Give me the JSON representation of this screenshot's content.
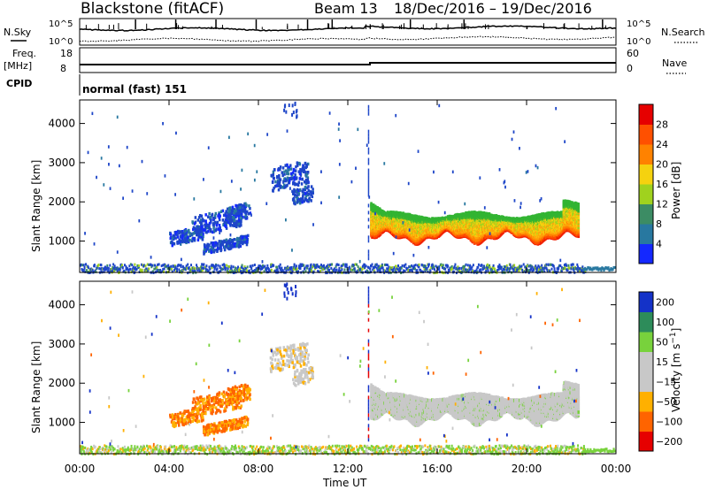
{
  "header": {
    "station": "Blackstone (fitACF)",
    "beam": "Beam 13",
    "date_range": "18/Dec/2016 – 19/Dec/2016"
  },
  "top_panels": {
    "nsky_label": "N.Sky",
    "nsearch_label": "N.Search",
    "noise_ticks": [
      "10^5",
      "10^0"
    ],
    "freq_label": "Freq.",
    "freq_unit": "[MHz]",
    "freq_ticks": [
      "18",
      "8"
    ],
    "nave_label": "Nave",
    "nave_ticks": [
      "60",
      "0"
    ],
    "cpid_label": "CPID",
    "cpid_value": "normal (fast) 151"
  },
  "colors": {
    "background_scatter": "#808080",
    "power_scale": [
      "#1428ff",
      "#1e46c8",
      "#2878a0",
      "#3c8c64",
      "#32b432",
      "#a0d21e",
      "#f5d20f",
      "#ffa50a",
      "#ff8200",
      "#ff5000",
      "#f01e00",
      "#e60000"
    ],
    "velocity_scale": [
      "#e60000",
      "#ff3200",
      "#ff6e00",
      "#ffaa00",
      "#ffd200",
      "#c8c8c8",
      "#c8c8c8",
      "#78d23c",
      "#3caa50",
      "#2d8c5a",
      "#1e5fa0",
      "#1432c8"
    ]
  },
  "chart_data": [
    {
      "type": "heatmap",
      "name": "Power",
      "ylabel": "Slant Range [km]",
      "ylim": [
        200,
        4600
      ],
      "yticks": [
        1000,
        2000,
        3000,
        4000
      ],
      "xlim_hours": [
        0,
        24
      ],
      "colorbar": {
        "label": "Power [dB]",
        "range": [
          0,
          32
        ],
        "ticks": [
          4,
          8,
          12,
          16,
          20,
          24,
          28
        ]
      },
      "regions": [
        {
          "t_start": 13.0,
          "t_end": 22.3,
          "range_lower_km": 1150,
          "range_upper_km": 1800,
          "value_dB": "8-28"
        },
        {
          "t_start": 3.8,
          "t_end": 7.6,
          "range_lower_km": 700,
          "range_upper_km": 1700,
          "value_dB": "4-10"
        },
        {
          "t_start": 8.3,
          "t_end": 10.3,
          "range_lower_km": 2200,
          "range_upper_km": 2900,
          "value_dB": "4-8"
        },
        {
          "t_start": 0.0,
          "t_end": 22.5,
          "range_lower_km": 200,
          "range_upper_km": 400,
          "value_dB": "4-20"
        }
      ]
    },
    {
      "type": "heatmap",
      "name": "Velocity",
      "ylabel": "Slant Range [km]",
      "xlabel": "Time UT",
      "xticks": [
        "00:00",
        "04:00",
        "08:00",
        "12:00",
        "16:00",
        "20:00",
        "00:00"
      ],
      "ylim": [
        200,
        4600
      ],
      "yticks": [
        1000,
        2000,
        3000,
        4000
      ],
      "xlim_hours": [
        0,
        24
      ],
      "colorbar": {
        "label": "Velocity [m s^-1]",
        "ticks": [
          "200",
          "100",
          "50",
          "15",
          "−15",
          "−50",
          "−100",
          "−200"
        ]
      },
      "regions": [
        {
          "t_start": 13.0,
          "t_end": 22.3,
          "range_lower_km": 1150,
          "range_upper_km": 1800,
          "velocity": "−15 to 15"
        },
        {
          "t_start": 3.8,
          "t_end": 7.6,
          "range_lower_km": 700,
          "range_upper_km": 1700,
          "velocity": "−100 to −50"
        },
        {
          "t_start": 8.3,
          "t_end": 10.3,
          "range_lower_km": 2200,
          "range_upper_km": 2900,
          "velocity": "−15 to 15"
        },
        {
          "t_start": 0.0,
          "t_end": 22.5,
          "range_lower_km": 200,
          "range_upper_km": 400,
          "velocity": "15 to 50"
        }
      ]
    }
  ]
}
